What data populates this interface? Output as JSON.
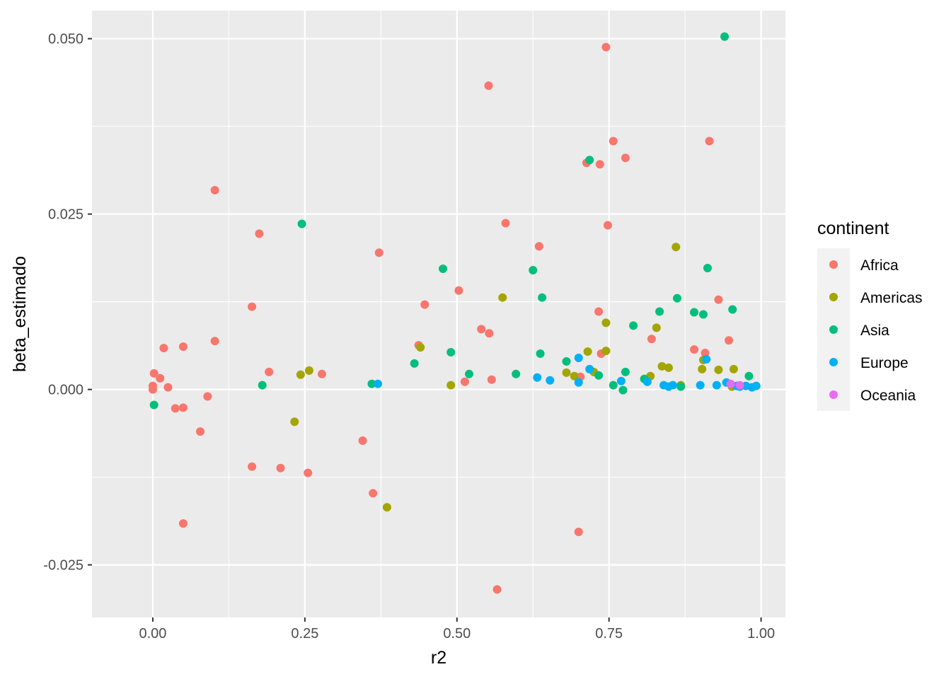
{
  "chart_data": {
    "type": "scatter",
    "xlabel": "r2",
    "ylabel": "beta_estimado",
    "xlim": [
      -0.1,
      1.04
    ],
    "ylim": [
      -0.0325,
      0.054
    ],
    "x_ticks": [
      0.0,
      0.25,
      0.5,
      0.75,
      1.0
    ],
    "x_tick_labels": [
      "0.00",
      "0.25",
      "0.50",
      "0.75",
      "1.00"
    ],
    "y_ticks": [
      -0.025,
      0.0,
      0.025,
      0.05
    ],
    "y_tick_labels": [
      "-0.025",
      "0.000",
      "0.025",
      "0.050"
    ],
    "grid": true,
    "legend": {
      "title": "continent",
      "position": "right",
      "entries": [
        "Africa",
        "Americas",
        "Asia",
        "Europe",
        "Oceania"
      ]
    },
    "colors": {
      "panel_background": "#EBEBEB",
      "grid": "#FFFFFF",
      "Africa": "#F8766D",
      "Americas": "#A3A500",
      "Asia": "#00BF7D",
      "Europe": "#00B0F6",
      "Oceania": "#E76BF3"
    },
    "series": [
      {
        "name": "Africa",
        "points": [
          [
            0.0,
            0.0
          ],
          [
            0.0,
            0.0005
          ],
          [
            0.002,
            0.0023
          ],
          [
            0.012,
            0.0016
          ],
          [
            0.018,
            0.0059
          ],
          [
            0.025,
            0.0003
          ],
          [
            0.037,
            -0.0027
          ],
          [
            0.05,
            0.0061
          ],
          [
            0.05,
            -0.0026
          ],
          [
            0.05,
            -0.0191
          ],
          [
            0.078,
            -0.006
          ],
          [
            0.09,
            -0.001
          ],
          [
            0.102,
            0.0069
          ],
          [
            0.102,
            0.0284
          ],
          [
            0.163,
            0.0118
          ],
          [
            0.163,
            -0.011
          ],
          [
            0.175,
            0.0222
          ],
          [
            0.191,
            0.0025
          ],
          [
            0.21,
            -0.0112
          ],
          [
            0.255,
            -0.0119
          ],
          [
            0.278,
            0.0022
          ],
          [
            0.345,
            -0.0073
          ],
          [
            0.362,
            -0.0148
          ],
          [
            0.372,
            0.0195
          ],
          [
            0.437,
            0.0063
          ],
          [
            0.447,
            0.0121
          ],
          [
            0.503,
            0.0141
          ],
          [
            0.513,
            0.0011
          ],
          [
            0.54,
            0.0086
          ],
          [
            0.552,
            0.0433
          ],
          [
            0.553,
            0.008
          ],
          [
            0.557,
            0.0014
          ],
          [
            0.566,
            -0.0285
          ],
          [
            0.58,
            0.0237
          ],
          [
            0.635,
            0.0204
          ],
          [
            0.7,
            -0.0203
          ],
          [
            0.703,
            0.0018
          ],
          [
            0.713,
            0.0323
          ],
          [
            0.733,
            0.0111
          ],
          [
            0.735,
            0.0321
          ],
          [
            0.737,
            0.0051
          ],
          [
            0.745,
            0.0488
          ],
          [
            0.748,
            0.0234
          ],
          [
            0.757,
            0.0354
          ],
          [
            0.777,
            0.033
          ],
          [
            0.82,
            0.0072
          ],
          [
            0.89,
            0.0057
          ],
          [
            0.908,
            0.0052
          ],
          [
            0.915,
            0.0354
          ],
          [
            0.93,
            0.0128
          ],
          [
            0.947,
            0.007
          ]
        ]
      },
      {
        "name": "Americas",
        "points": [
          [
            0.233,
            -0.0046
          ],
          [
            0.243,
            0.0021
          ],
          [
            0.257,
            0.0027
          ],
          [
            0.385,
            -0.0168
          ],
          [
            0.44,
            0.006
          ],
          [
            0.49,
            0.0006
          ],
          [
            0.575,
            0.0131
          ],
          [
            0.68,
            0.0024
          ],
          [
            0.693,
            0.0019
          ],
          [
            0.715,
            0.0054
          ],
          [
            0.725,
            0.0025
          ],
          [
            0.745,
            0.0095
          ],
          [
            0.745,
            0.0055
          ],
          [
            0.818,
            0.0019
          ],
          [
            0.828,
            0.0088
          ],
          [
            0.837,
            0.0033
          ],
          [
            0.848,
            0.0031
          ],
          [
            0.86,
            0.0203
          ],
          [
            0.868,
            0.0006
          ],
          [
            0.903,
            0.0029
          ],
          [
            0.905,
            0.0042
          ],
          [
            0.93,
            0.0028
          ],
          [
            0.952,
            0.0004
          ],
          [
            0.955,
            0.0029
          ]
        ]
      },
      {
        "name": "Asia",
        "points": [
          [
            0.002,
            -0.0022
          ],
          [
            0.18,
            0.0006
          ],
          [
            0.245,
            0.0236
          ],
          [
            0.36,
            0.0008
          ],
          [
            0.43,
            0.0037
          ],
          [
            0.477,
            0.0172
          ],
          [
            0.49,
            0.0053
          ],
          [
            0.52,
            0.0022
          ],
          [
            0.597,
            0.0022
          ],
          [
            0.625,
            0.017
          ],
          [
            0.637,
            0.0051
          ],
          [
            0.64,
            0.0131
          ],
          [
            0.68,
            0.004
          ],
          [
            0.718,
            0.0327
          ],
          [
            0.733,
            0.002
          ],
          [
            0.757,
            0.0006
          ],
          [
            0.773,
            -0.0001
          ],
          [
            0.777,
            0.0025
          ],
          [
            0.79,
            0.0091
          ],
          [
            0.808,
            0.0015
          ],
          [
            0.833,
            0.0111
          ],
          [
            0.862,
            0.013
          ],
          [
            0.868,
            0.0004
          ],
          [
            0.89,
            0.011
          ],
          [
            0.905,
            0.0107
          ],
          [
            0.912,
            0.0173
          ],
          [
            0.94,
            0.0503
          ],
          [
            0.953,
            0.0114
          ],
          [
            0.98,
            0.0019
          ]
        ]
      },
      {
        "name": "Europe",
        "points": [
          [
            0.37,
            0.0008
          ],
          [
            0.632,
            0.0017
          ],
          [
            0.653,
            0.0013
          ],
          [
            0.7,
            0.0045
          ],
          [
            0.7,
            0.001
          ],
          [
            0.718,
            0.0029
          ],
          [
            0.77,
            0.0012
          ],
          [
            0.813,
            0.0011
          ],
          [
            0.84,
            0.0006
          ],
          [
            0.848,
            0.0004
          ],
          [
            0.855,
            0.0006
          ],
          [
            0.9,
            0.0006
          ],
          [
            0.91,
            0.0043
          ],
          [
            0.927,
            0.0006
          ],
          [
            0.943,
            0.001
          ],
          [
            0.96,
            0.0005
          ],
          [
            0.965,
            0.0004
          ],
          [
            0.975,
            0.0005
          ],
          [
            0.985,
            0.0003
          ],
          [
            0.992,
            0.0005
          ]
        ]
      },
      {
        "name": "Oceania",
        "points": [
          [
            0.95,
            0.0008
          ],
          [
            0.965,
            0.0006
          ]
        ]
      }
    ]
  }
}
